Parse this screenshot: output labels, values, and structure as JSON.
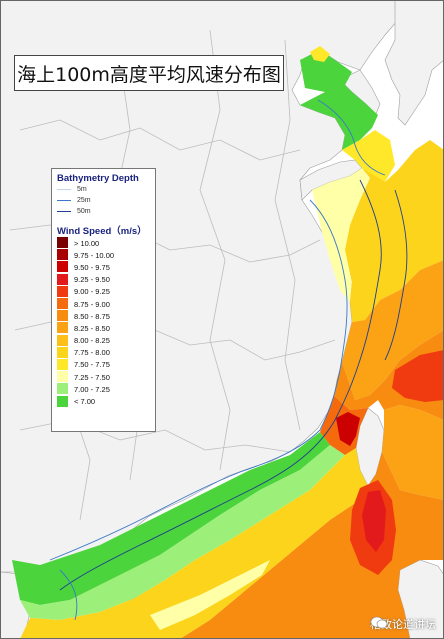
{
  "map": {
    "title": "海上100m高度平均风速分布图",
    "colors": {
      "sea": "#ffffff",
      "land": "#f2f2f2",
      "province_border": "#bdbdbd",
      "frame": "#666666"
    }
  },
  "legend": {
    "bathymetry_title": "Bathymetry Depth",
    "bathymetry": [
      {
        "label": "5m",
        "color": "#c5d3e8"
      },
      {
        "label": "25m",
        "color": "#3a78c8"
      },
      {
        "label": "50m",
        "color": "#1f3f8f"
      }
    ],
    "wind_title": "Wind Speed（m/s）",
    "wind": [
      {
        "label": "> 10.00",
        "color": "#7a0000"
      },
      {
        "label": "9.75 - 10.00",
        "color": "#a80000"
      },
      {
        "label": "9.50 - 9.75",
        "color": "#cc0000"
      },
      {
        "label": "9.25 - 9.50",
        "color": "#e31a1c"
      },
      {
        "label": "9.00 - 9.25",
        "color": "#f03a10"
      },
      {
        "label": "8.75 - 9.00",
        "color": "#f56a0c"
      },
      {
        "label": "8.50 - 8.75",
        "color": "#f88c10"
      },
      {
        "label": "8.25 - 8.50",
        "color": "#fba314"
      },
      {
        "label": "8.00 - 8.25",
        "color": "#fdbf18"
      },
      {
        "label": "7.75 - 8.00",
        "color": "#fdd41c"
      },
      {
        "label": "7.50 - 7.75",
        "color": "#ffe82a"
      },
      {
        "label": "7.25 - 7.50",
        "color": "#ffffa8"
      },
      {
        "label": "7.00 - 7.25",
        "color": "#9cf07a"
      },
      {
        "label": "< 7.00",
        "color": "#4cd43c"
      }
    ]
  },
  "watermark": {
    "text": "格致论道讲坛",
    "icon": "chat-bubbles-icon"
  }
}
